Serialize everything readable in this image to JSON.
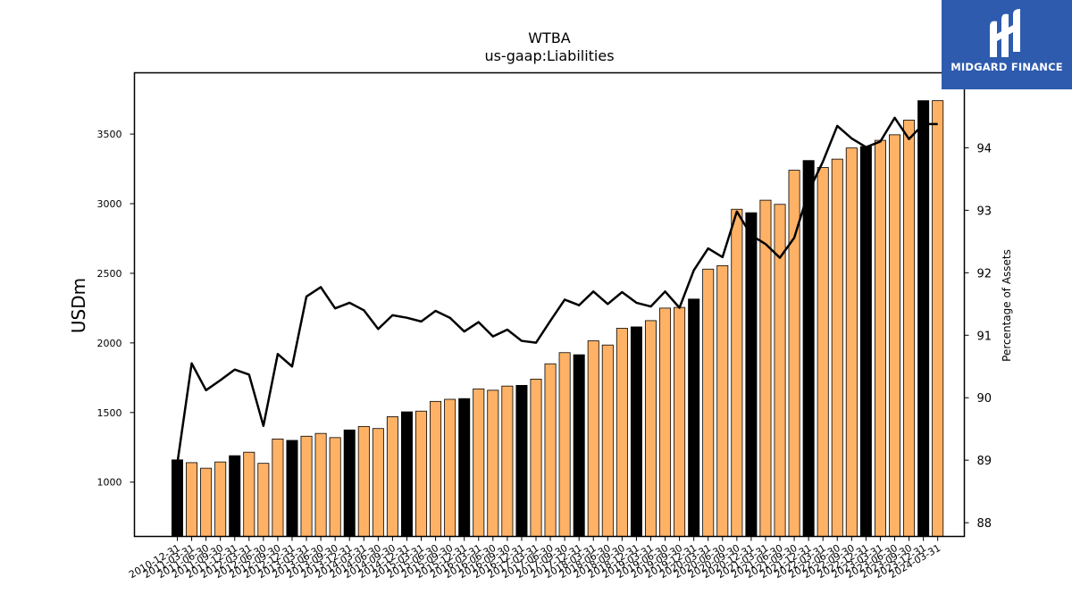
{
  "chart_data": {
    "type": "bar",
    "title": "WTBA",
    "subtitle": "us-gaap:Liabilities",
    "ylabel": "USDm",
    "y2label": "Percentage of Assets",
    "ylim": [
      610,
      3940
    ],
    "y2lim": [
      87.78,
      95.2
    ],
    "yticks": [
      1000,
      1500,
      2000,
      2500,
      3000,
      3500
    ],
    "y2ticks": [
      88,
      89,
      90,
      91,
      92,
      93,
      94
    ],
    "colors": {
      "bar_q4": "#000000",
      "bar_other": "#ffb266",
      "bar_edge": "#000000",
      "line": "#000000"
    },
    "categories": [
      "2010-12-31",
      "2011-03-31",
      "2011-06-30",
      "2011-09-30",
      "2011-12-31",
      "2012-03-31",
      "2012-06-30",
      "2012-09-30",
      "2012-12-31",
      "2013-03-31",
      "2013-06-30",
      "2013-09-30",
      "2013-12-31",
      "2014-03-31",
      "2014-06-30",
      "2014-09-30",
      "2014-12-31",
      "2015-03-31",
      "2015-06-30",
      "2015-09-30",
      "2015-12-31",
      "2016-03-31",
      "2016-06-30",
      "2016-09-30",
      "2016-12-31",
      "2017-03-31",
      "2017-06-30",
      "2017-09-30",
      "2017-12-31",
      "2018-03-31",
      "2018-06-30",
      "2018-09-30",
      "2018-12-31",
      "2019-03-31",
      "2019-06-30",
      "2019-09-30",
      "2019-12-31",
      "2020-03-31",
      "2020-06-30",
      "2020-09-30",
      "2020-12-31",
      "2021-03-31",
      "2021-06-30",
      "2021-09-30",
      "2021-12-31",
      "2022-03-31",
      "2022-06-30",
      "2022-09-30",
      "2022-12-31",
      "2023-03-31",
      "2023-06-30",
      "2023-09-30",
      "2023-12-31",
      "2024-03-31"
    ],
    "series": [
      {
        "name": "",
        "type": "bar",
        "values": [
          1160,
          1140,
          1100,
          1145,
          1190,
          1215,
          1135,
          1310,
          1300,
          1330,
          1350,
          1320,
          1375,
          1400,
          1385,
          1470,
          1505,
          1510,
          1580,
          1595,
          1600,
          1670,
          1660,
          1690,
          1695,
          1740,
          1850,
          1930,
          1915,
          2015,
          1985,
          2105,
          2115,
          2160,
          2250,
          2255,
          2315,
          2530,
          2555,
          2960,
          2935,
          3025,
          2995,
          3240,
          3310,
          3260,
          3320,
          3400,
          3410,
          3455,
          3495,
          3600,
          3740,
          3740
        ]
      },
      {
        "name": "",
        "type": "line",
        "axis": "right",
        "values": [
          88.95,
          90.55,
          90.12,
          90.28,
          90.45,
          90.37,
          89.55,
          90.7,
          90.5,
          91.62,
          91.77,
          91.43,
          91.52,
          91.4,
          91.1,
          91.32,
          91.28,
          91.22,
          91.39,
          91.28,
          91.06,
          91.21,
          90.98,
          91.09,
          90.91,
          90.88,
          91.23,
          91.57,
          91.48,
          91.7,
          91.5,
          91.69,
          91.52,
          91.46,
          91.7,
          91.44,
          92.04,
          92.39,
          92.25,
          92.98,
          92.6,
          92.46,
          92.24,
          92.56,
          93.3,
          93.78,
          94.35,
          94.15,
          94.01,
          94.1,
          94.48,
          94.14,
          94.38,
          94.38
        ]
      }
    ],
    "grid": false,
    "legend": "none"
  },
  "logo": {
    "text": "MIDGARD FINANCE"
  }
}
